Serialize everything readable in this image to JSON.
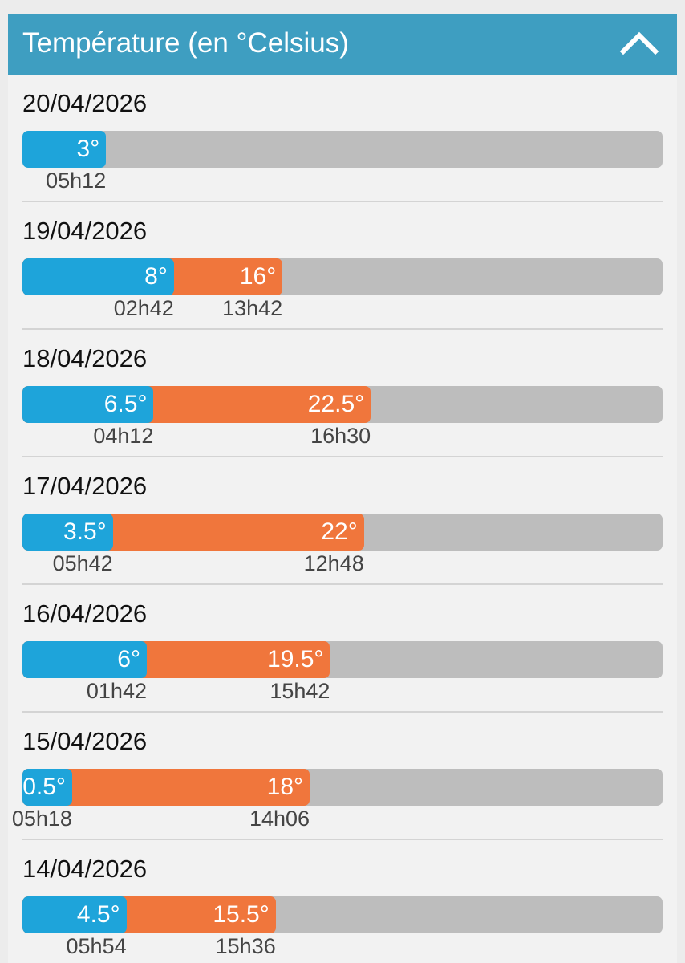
{
  "header": {
    "title": "Température (en °Celsius)",
    "collapse_icon": "chevron-up-icon"
  },
  "scale": {
    "min": -3.16,
    "max": 44
  },
  "colors": {
    "header": "#3e9ec1",
    "min_bar": "#1ea4da",
    "max_bar": "#f0763c",
    "track": "#bdbdbd"
  },
  "days": [
    {
      "date": "20/04/2026",
      "min": {
        "value": 3,
        "label": "3°",
        "time": "05h12"
      },
      "max": null
    },
    {
      "date": "19/04/2026",
      "min": {
        "value": 8,
        "label": "8°",
        "time": "02h42"
      },
      "max": {
        "value": 16,
        "label": "16°",
        "time": "13h42"
      }
    },
    {
      "date": "18/04/2026",
      "min": {
        "value": 6.5,
        "label": "6.5°",
        "time": "04h12"
      },
      "max": {
        "value": 22.5,
        "label": "22.5°",
        "time": "16h30"
      }
    },
    {
      "date": "17/04/2026",
      "min": {
        "value": 3.5,
        "label": "3.5°",
        "time": "05h42"
      },
      "max": {
        "value": 22,
        "label": "22°",
        "time": "12h48"
      }
    },
    {
      "date": "16/04/2026",
      "min": {
        "value": 6,
        "label": "6°",
        "time": "01h42"
      },
      "max": {
        "value": 19.5,
        "label": "19.5°",
        "time": "15h42"
      }
    },
    {
      "date": "15/04/2026",
      "min": {
        "value": 0.5,
        "label": "0.5°",
        "time": "05h18"
      },
      "max": {
        "value": 18,
        "label": "18°",
        "time": "14h06"
      }
    },
    {
      "date": "14/04/2026",
      "min": {
        "value": 4.5,
        "label": "4.5°",
        "time": "05h54"
      },
      "max": {
        "value": 15.5,
        "label": "15.5°",
        "time": "15h36"
      }
    }
  ]
}
